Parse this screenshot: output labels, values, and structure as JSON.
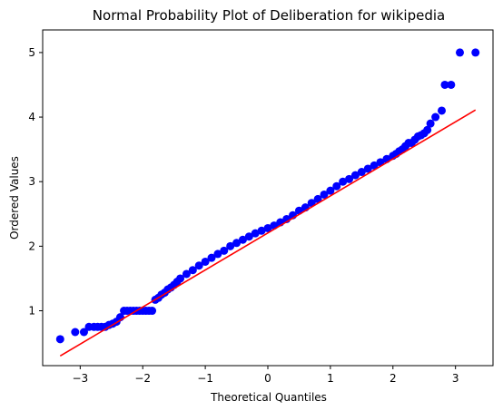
{
  "chart_data": {
    "type": "scatter",
    "title": "Normal Probability Plot of Deliberation for wikipedia",
    "xlabel": "Theoretical Quantiles",
    "ylabel": "Ordered Values",
    "xlim": [
      -3.6,
      3.6
    ],
    "ylim": [
      0.15,
      5.35
    ],
    "xticks": [
      -3,
      -2,
      -1,
      0,
      1,
      2,
      3
    ],
    "xtick_labels": [
      "−3",
      "−2",
      "−1",
      "0",
      "1",
      "2",
      "3"
    ],
    "yticks": [
      1,
      2,
      3,
      4,
      5
    ],
    "ytick_labels": [
      "1",
      "2",
      "3",
      "4",
      "5"
    ],
    "grid": false,
    "series": [
      {
        "kind": "points",
        "color": "#0000ff",
        "x": [
          -3.32,
          -3.08,
          -2.94,
          -2.86,
          -2.78,
          -2.72,
          -2.66,
          -2.6,
          -2.54,
          -2.48,
          -2.42,
          -2.36,
          -2.3,
          -2.25,
          -2.2,
          -2.15,
          -2.1,
          -2.05,
          -2.0,
          -1.95,
          -1.9,
          -1.85,
          -1.8,
          -1.75,
          -1.7,
          -1.65,
          -1.6,
          -1.55,
          -1.5,
          -1.45,
          -1.4,
          -1.3,
          -1.2,
          -1.1,
          -1.0,
          -0.9,
          -0.8,
          -0.7,
          -0.6,
          -0.5,
          -0.4,
          -0.3,
          -0.2,
          -0.1,
          0.0,
          0.1,
          0.2,
          0.3,
          0.4,
          0.5,
          0.6,
          0.7,
          0.8,
          0.9,
          1.0,
          1.1,
          1.2,
          1.3,
          1.4,
          1.5,
          1.6,
          1.7,
          1.8,
          1.9,
          2.0,
          2.05,
          2.1,
          2.15,
          2.2,
          2.25,
          2.3,
          2.35,
          2.4,
          2.45,
          2.5,
          2.55,
          2.6,
          2.68,
          2.78,
          2.83,
          2.93,
          3.07,
          3.32
        ],
        "y": [
          0.56,
          0.67,
          0.67,
          0.75,
          0.75,
          0.75,
          0.75,
          0.75,
          0.78,
          0.8,
          0.83,
          0.9,
          1.0,
          1.0,
          1.0,
          1.0,
          1.0,
          1.0,
          1.0,
          1.0,
          1.0,
          1.0,
          1.17,
          1.2,
          1.25,
          1.28,
          1.33,
          1.36,
          1.4,
          1.45,
          1.5,
          1.57,
          1.63,
          1.7,
          1.76,
          1.82,
          1.88,
          1.93,
          2.0,
          2.05,
          2.1,
          2.15,
          2.2,
          2.24,
          2.28,
          2.32,
          2.37,
          2.42,
          2.48,
          2.55,
          2.6,
          2.67,
          2.73,
          2.8,
          2.86,
          2.93,
          3.0,
          3.04,
          3.1,
          3.15,
          3.2,
          3.25,
          3.3,
          3.35,
          3.4,
          3.43,
          3.47,
          3.5,
          3.55,
          3.6,
          3.6,
          3.65,
          3.7,
          3.72,
          3.75,
          3.8,
          3.9,
          4.0,
          4.1,
          4.5,
          4.5,
          5.0,
          5.0
        ]
      },
      {
        "kind": "fit-line",
        "color": "#ff0000",
        "x": [
          -3.32,
          3.32
        ],
        "y": [
          0.3,
          4.11
        ]
      }
    ]
  }
}
